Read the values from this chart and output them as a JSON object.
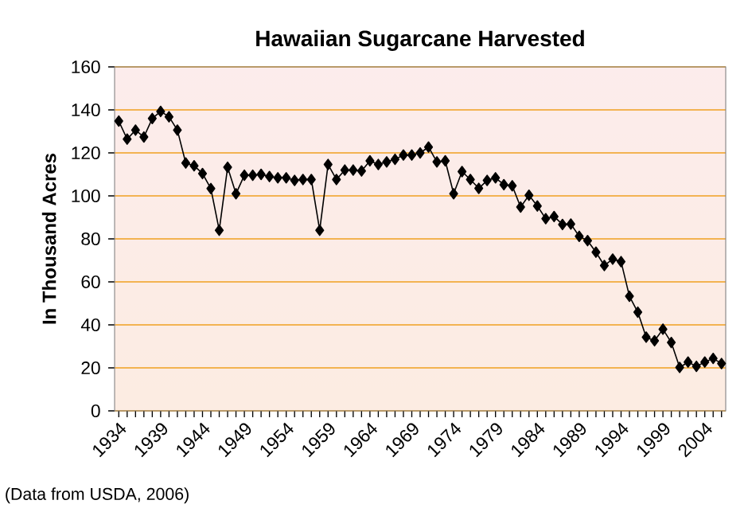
{
  "chart_data": {
    "type": "line",
    "title": "Hawaiian Sugarcane Harvested",
    "ylabel": "In Thousand Acres",
    "categories": [
      "1934",
      null,
      null,
      null,
      null,
      "1939",
      null,
      null,
      null,
      null,
      "1944",
      null,
      null,
      null,
      null,
      "1949",
      null,
      null,
      null,
      null,
      "1954",
      null,
      null,
      null,
      null,
      "1959",
      null,
      null,
      null,
      null,
      "1964",
      null,
      null,
      null,
      null,
      "1969",
      null,
      null,
      null,
      null,
      "1974",
      null,
      null,
      null,
      null,
      "1979",
      null,
      null,
      null,
      null,
      "1984",
      null,
      null,
      null,
      null,
      "1989",
      null,
      null,
      null,
      null,
      "1994",
      null,
      null,
      null,
      null,
      "1999",
      null,
      null,
      null,
      null,
      "2004",
      null,
      null
    ],
    "series": [
      {
        "color": "#000000",
        "values": [
          134.8,
          126.4,
          130.6,
          127.4,
          136,
          139.3,
          136.8,
          130.6,
          115.3,
          114,
          110.4,
          103.4,
          84,
          113.3,
          101,
          109.6,
          109.6,
          110,
          109,
          108.4,
          108.4,
          107.2,
          107.6,
          107.6,
          84,
          114.6,
          107.6,
          112,
          112,
          111.6,
          116.3,
          114.6,
          115.8,
          117,
          119,
          119,
          120,
          122.7,
          115.8,
          116.3,
          101,
          111.3,
          107.6,
          103.5,
          107.2,
          108.4,
          105.2,
          104.7,
          94.8,
          100.3,
          95.3,
          89.4,
          90.4,
          86.7,
          86.9,
          81.2,
          79.2,
          73.8,
          67.6,
          70.6,
          69.4,
          53.3,
          45.9,
          34.3,
          32.6,
          38,
          31.8,
          20.2,
          22.7,
          20.7,
          22.7,
          24.4,
          22
        ]
      }
    ],
    "ylim": [
      0,
      160
    ],
    "yticks": [
      0,
      20,
      40,
      60,
      80,
      100,
      120,
      140,
      160
    ],
    "grid": "y",
    "marker": "diamond",
    "line_style": "solid",
    "annotations": [
      "(Data from USDA, 2006)"
    ]
  }
}
